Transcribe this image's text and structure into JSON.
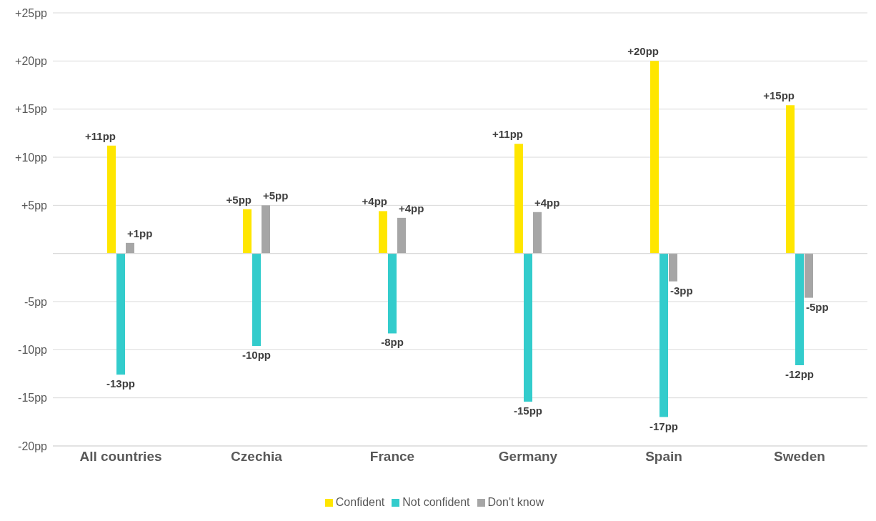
{
  "chart_data": {
    "type": "bar",
    "categories": [
      "All countries",
      "Czechia",
      "France",
      "Germany",
      "Spain",
      "Sweden"
    ],
    "series": [
      {
        "name": "Confident",
        "color": "#ffe600",
        "values": [
          11.2,
          4.6,
          4.4,
          11.4,
          20.0,
          15.4
        ],
        "value_labels": [
          "+11pp",
          "+5pp",
          "+4pp",
          "+11pp",
          "+20pp",
          "+15pp"
        ]
      },
      {
        "name": "Not confident",
        "color": "#33cccc",
        "values": [
          -12.6,
          -9.6,
          -8.3,
          -15.4,
          -17.0,
          -11.6
        ],
        "value_labels": [
          "-13pp",
          "-10pp",
          "-8pp",
          "-15pp",
          "-17pp",
          "-12pp"
        ]
      },
      {
        "name": "Don't know",
        "color": "#a6a6a6",
        "values": [
          1.1,
          5.0,
          3.7,
          4.3,
          -2.9,
          -4.6
        ],
        "value_labels": [
          "+1pp",
          "+5pp",
          "+4pp",
          "+4pp",
          "-3pp",
          "-5pp"
        ]
      }
    ],
    "ylim": [
      -20,
      25
    ],
    "yticks": [
      {
        "value": -20,
        "label": "-20pp"
      },
      {
        "value": -15,
        "label": "-15pp"
      },
      {
        "value": -10,
        "label": "-10pp"
      },
      {
        "value": -5,
        "label": "-5pp"
      },
      {
        "value": 0,
        "label": null
      },
      {
        "value": 5,
        "label": "+5pp"
      },
      {
        "value": 10,
        "label": "+10pp"
      },
      {
        "value": 15,
        "label": "+15pp"
      },
      {
        "value": 20,
        "label": "+20pp"
      },
      {
        "value": 25,
        "label": "+25pp"
      }
    ],
    "grid": "y",
    "legend": "bottom"
  }
}
